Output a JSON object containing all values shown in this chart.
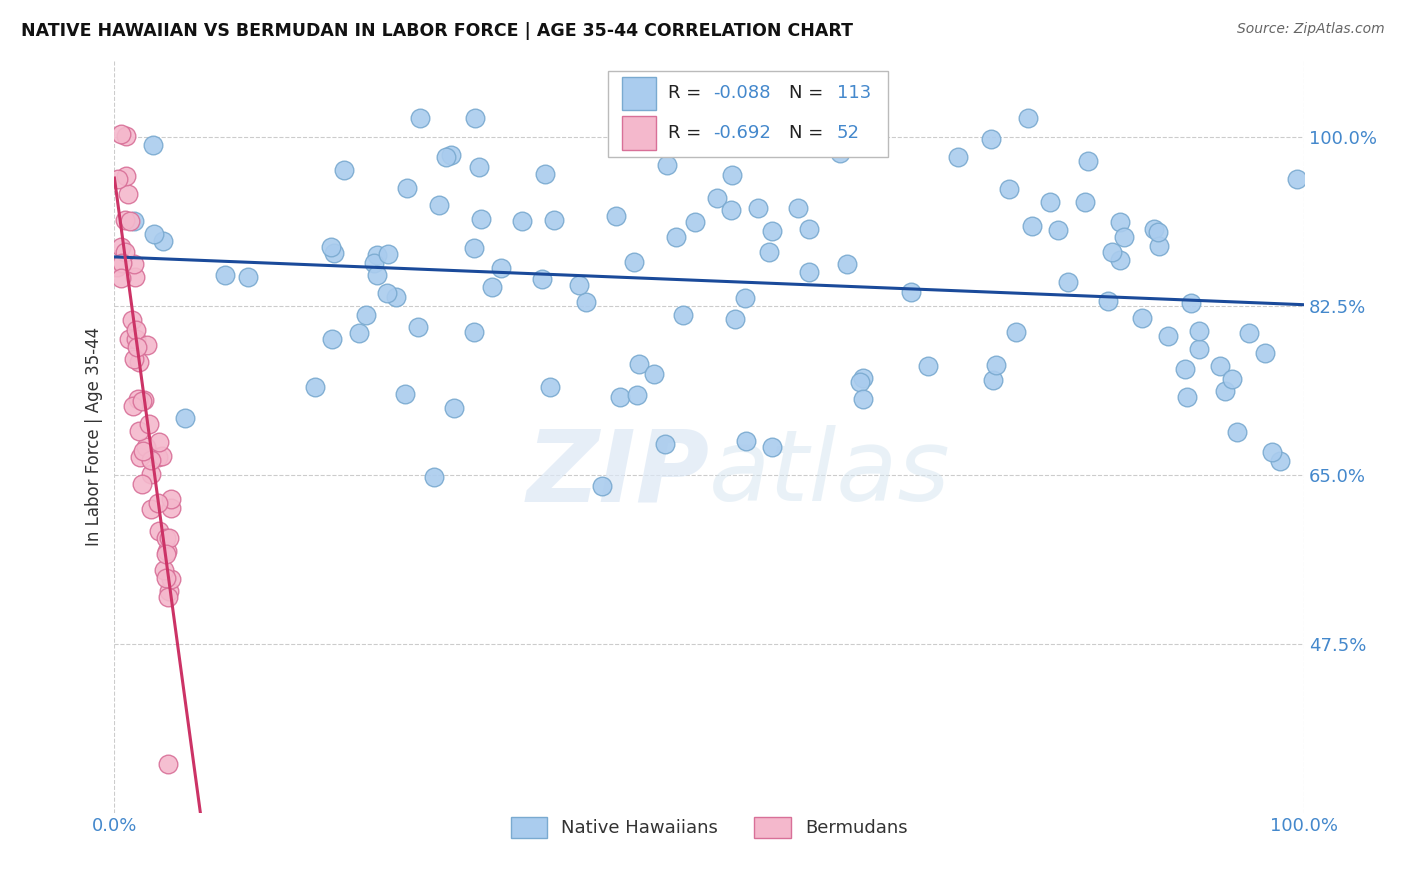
{
  "title": "NATIVE HAWAIIAN VS BERMUDAN IN LABOR FORCE | AGE 35-44 CORRELATION CHART",
  "source": "Source: ZipAtlas.com",
  "ylabel": "In Labor Force | Age 35-44",
  "xlim": [
    0.0,
    1.0
  ],
  "ylim": [
    0.3,
    1.08
  ],
  "blue_R": -0.088,
  "blue_N": 113,
  "pink_R": -0.692,
  "pink_N": 52,
  "blue_color": "#aaccee",
  "blue_edge": "#7aaad0",
  "pink_color": "#f4b8cc",
  "pink_edge": "#d87098",
  "blue_line_color": "#1a4a9a",
  "pink_line_color": "#cc3366",
  "watermark_zip": "ZIP",
  "watermark_atlas": "atlas",
  "legend_label_blue": "Native Hawaiians",
  "legend_label_pink": "Bermudans",
  "yticks": [
    1.0,
    0.825,
    0.65,
    0.475
  ],
  "ytick_labels": [
    "100.0%",
    "82.5%",
    "65.0%",
    "47.5%"
  ],
  "xticks": [
    0.0,
    1.0
  ],
  "xtick_labels": [
    "0.0%",
    "100.0%"
  ],
  "grid_color": "#cccccc",
  "tick_color": "#4488cc"
}
